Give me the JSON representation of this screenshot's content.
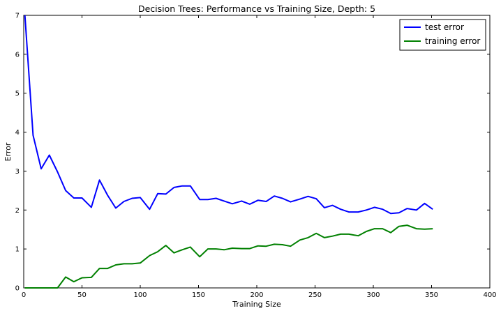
{
  "chart_data": {
    "type": "line",
    "title": "Decision Trees: Performance vs Training Size, Depth: 5",
    "xlabel": "Training Size",
    "ylabel": "Error",
    "xlim": [
      0,
      400
    ],
    "ylim": [
      0,
      7
    ],
    "xticks": [
      0,
      50,
      100,
      150,
      200,
      250,
      300,
      350,
      400
    ],
    "yticks": [
      0,
      1,
      2,
      3,
      4,
      5,
      6,
      7
    ],
    "grid": false,
    "legend_position": "top-right",
    "x": [
      1,
      8,
      15,
      22,
      29,
      36,
      43,
      50,
      58,
      65,
      72,
      79,
      86,
      93,
      100,
      108,
      115,
      122,
      129,
      136,
      143,
      151,
      158,
      165,
      172,
      179,
      187,
      194,
      201,
      208,
      215,
      222,
      229,
      237,
      244,
      251,
      258,
      265,
      272,
      279,
      287,
      294,
      301,
      308,
      315,
      322,
      329,
      337,
      344,
      351
    ],
    "series": [
      {
        "name": "test error",
        "color": "#0000ff",
        "values": [
          7.0,
          3.92,
          3.06,
          3.41,
          2.98,
          2.5,
          2.31,
          2.31,
          2.07,
          2.77,
          2.38,
          2.05,
          2.22,
          2.3,
          2.32,
          2.02,
          2.42,
          2.41,
          2.58,
          2.62,
          2.62,
          2.27,
          2.27,
          2.3,
          2.23,
          2.16,
          2.23,
          2.15,
          2.25,
          2.22,
          2.36,
          2.3,
          2.21,
          2.28,
          2.35,
          2.29,
          2.06,
          2.12,
          2.02,
          1.95,
          1.95,
          2.0,
          2.07,
          2.02,
          1.91,
          1.93,
          2.04,
          2.0,
          2.17,
          2.02
        ]
      },
      {
        "name": "training error",
        "color": "#008000",
        "values": [
          0.0,
          0.0,
          0.0,
          0.0,
          0.0,
          0.28,
          0.16,
          0.26,
          0.27,
          0.5,
          0.5,
          0.59,
          0.62,
          0.62,
          0.64,
          0.83,
          0.93,
          1.09,
          0.9,
          0.98,
          1.05,
          0.8,
          1.0,
          1.0,
          0.98,
          1.02,
          1.01,
          1.01,
          1.08,
          1.07,
          1.12,
          1.11,
          1.07,
          1.23,
          1.29,
          1.4,
          1.29,
          1.33,
          1.38,
          1.38,
          1.34,
          1.45,
          1.52,
          1.52,
          1.42,
          1.58,
          1.61,
          1.52,
          1.51,
          1.52
        ]
      }
    ]
  }
}
